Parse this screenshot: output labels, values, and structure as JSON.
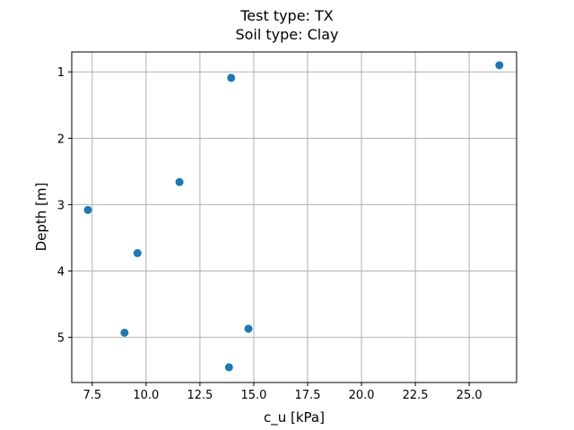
{
  "chart_data": {
    "type": "scatter",
    "title": [
      "Test type: TX",
      "Soil type: Clay"
    ],
    "xlabel": "c_u [kPa]",
    "ylabel": "Depth [m]",
    "xlim": [
      6.55,
      27.2
    ],
    "ylim": [
      5.68,
      0.7
    ],
    "y_inverted": true,
    "grid": true,
    "x_ticks": [
      7.5,
      10.0,
      12.5,
      15.0,
      17.5,
      20.0,
      22.5,
      25.0
    ],
    "x_tick_labels": [
      "7.5",
      "10.0",
      "12.5",
      "15.0",
      "17.5",
      "20.0",
      "22.5",
      "25.0"
    ],
    "y_ticks": [
      1,
      2,
      3,
      4,
      5
    ],
    "y_tick_labels": [
      "1",
      "2",
      "3",
      "4",
      "5"
    ],
    "marker_color": "#1f77b4",
    "points": [
      {
        "x": 26.4,
        "y": 0.9
      },
      {
        "x": 13.95,
        "y": 1.09
      },
      {
        "x": 11.55,
        "y": 2.66
      },
      {
        "x": 7.3,
        "y": 3.08
      },
      {
        "x": 9.6,
        "y": 3.73
      },
      {
        "x": 14.75,
        "y": 4.87
      },
      {
        "x": 9.0,
        "y": 4.93
      },
      {
        "x": 13.85,
        "y": 5.45
      }
    ]
  }
}
